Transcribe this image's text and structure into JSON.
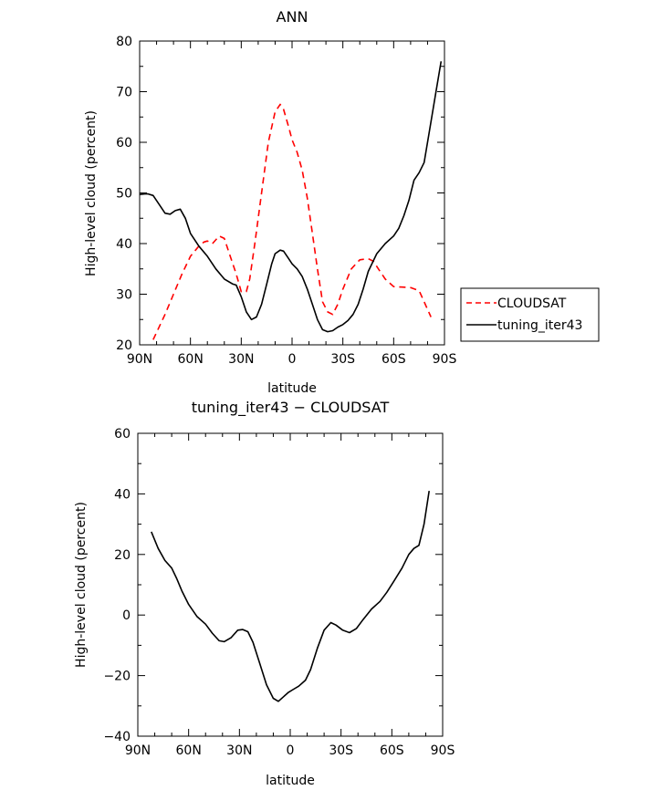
{
  "chart_data": [
    {
      "type": "line",
      "title": "ANN",
      "xlabel": "latitude",
      "ylabel": "High-level cloud (percent)",
      "xlim": [
        90,
        -90
      ],
      "ylim": [
        20,
        80
      ],
      "x_ticks": [
        90,
        60,
        30,
        0,
        -30,
        -60,
        -90
      ],
      "x_tick_labels": [
        "90N",
        "60N",
        "30N",
        "0",
        "30S",
        "60S",
        "90S"
      ],
      "y_ticks": [
        20,
        30,
        40,
        50,
        60,
        70,
        80
      ],
      "y_tick_labels": [
        "20",
        "30",
        "40",
        "50",
        "60",
        "70",
        "80"
      ],
      "legend": "right",
      "series": [
        {
          "name": "CLOUDSAT",
          "color": "#ff0000",
          "dash": "dashed",
          "x": [
            82,
            75,
            70,
            65,
            60,
            55,
            52,
            50,
            47,
            43,
            40,
            37,
            33,
            30,
            27,
            25,
            22,
            18,
            14,
            10,
            7,
            5,
            2,
            0,
            -3,
            -6,
            -9,
            -12,
            -15,
            -18,
            -21,
            -24,
            -27,
            -30,
            -35,
            -40,
            -45,
            -48,
            -51,
            -55,
            -60,
            -65,
            -70,
            -75,
            -78,
            -82
          ],
          "y": [
            21,
            26,
            30,
            34,
            37.5,
            39.5,
            40.3,
            40.5,
            40,
            41.5,
            41,
            38,
            34,
            30.5,
            30.5,
            33,
            40,
            50,
            60,
            66,
            67.5,
            66.5,
            63,
            60.5,
            58,
            54.5,
            49,
            42,
            35,
            28.5,
            26.5,
            26,
            28,
            31,
            35,
            36.8,
            37,
            36.5,
            35,
            33,
            31.5,
            31.4,
            31.3,
            30.7,
            28.5,
            25.5
          ]
        },
        {
          "name": "tuning_iter43",
          "color": "#000000",
          "dash": "solid",
          "x": [
            90,
            87,
            85,
            82,
            78,
            75,
            72,
            69,
            66,
            63,
            60,
            55,
            50,
            45,
            40,
            35,
            33,
            30,
            27,
            24,
            21,
            18,
            15,
            12,
            10,
            7,
            5,
            2,
            0,
            -3,
            -6,
            -9,
            -12,
            -15,
            -18,
            -21,
            -24,
            -27,
            -30,
            -33,
            -36,
            -39,
            -42,
            -45,
            -50,
            -55,
            -60,
            -63,
            -66,
            -69,
            -72,
            -75,
            -78,
            -81,
            -85,
            -88
          ],
          "y": [
            49.7,
            49.8,
            49.8,
            49.5,
            47.5,
            46,
            45.8,
            46.5,
            46.8,
            45,
            42,
            39.5,
            37.5,
            35,
            33,
            32,
            31.8,
            29.5,
            26.5,
            25,
            25.5,
            28,
            32,
            36,
            38,
            38.7,
            38.5,
            37,
            36,
            35,
            33.5,
            31,
            28,
            25,
            23,
            22.6,
            22.8,
            23.5,
            24,
            24.8,
            26,
            28,
            31,
            34.5,
            38,
            40,
            41.5,
            43,
            45.5,
            48.5,
            52.5,
            54,
            56,
            62,
            70,
            76
          ]
        }
      ]
    },
    {
      "type": "line",
      "title": "tuning_iter43 − CLOUDSAT",
      "xlabel": "latitude",
      "ylabel": "High-level cloud (percent)",
      "xlim": [
        90,
        -90
      ],
      "ylim": [
        -40,
        60
      ],
      "x_ticks": [
        90,
        60,
        30,
        0,
        -30,
        -60,
        -90
      ],
      "x_tick_labels": [
        "90N",
        "60N",
        "30N",
        "0",
        "30S",
        "60S",
        "90S"
      ],
      "y_ticks": [
        -40,
        -20,
        0,
        20,
        40,
        60
      ],
      "y_tick_labels": [
        "−40",
        "−20",
        "0",
        "20",
        "40",
        "60"
      ],
      "series": [
        {
          "color": "#000000",
          "dash": "solid",
          "x": [
            82,
            78,
            74,
            70,
            67,
            64,
            60,
            55,
            50,
            46,
            42,
            39,
            35,
            31,
            28,
            25,
            22,
            18,
            14,
            10,
            7,
            4,
            1,
            -2,
            -5,
            -9,
            -12,
            -16,
            -20,
            -24,
            -27,
            -31,
            -35,
            -39,
            -43,
            -48,
            -53,
            -57,
            -61,
            -66,
            -70,
            -73,
            -76,
            -79,
            -82
          ],
          "y": [
            27.5,
            22,
            18,
            15.5,
            12,
            8,
            3.5,
            -0.5,
            -3,
            -6,
            -8.5,
            -8.8,
            -7.5,
            -5,
            -4.8,
            -5.5,
            -9,
            -16,
            -23,
            -27.5,
            -28.5,
            -27,
            -25.5,
            -24.5,
            -23.5,
            -21.5,
            -18,
            -11,
            -5,
            -2.5,
            -3.3,
            -5,
            -5.8,
            -4.5,
            -1.5,
            2,
            4.5,
            7.5,
            11,
            15.5,
            20,
            22,
            23,
            30,
            41
          ]
        }
      ]
    }
  ]
}
